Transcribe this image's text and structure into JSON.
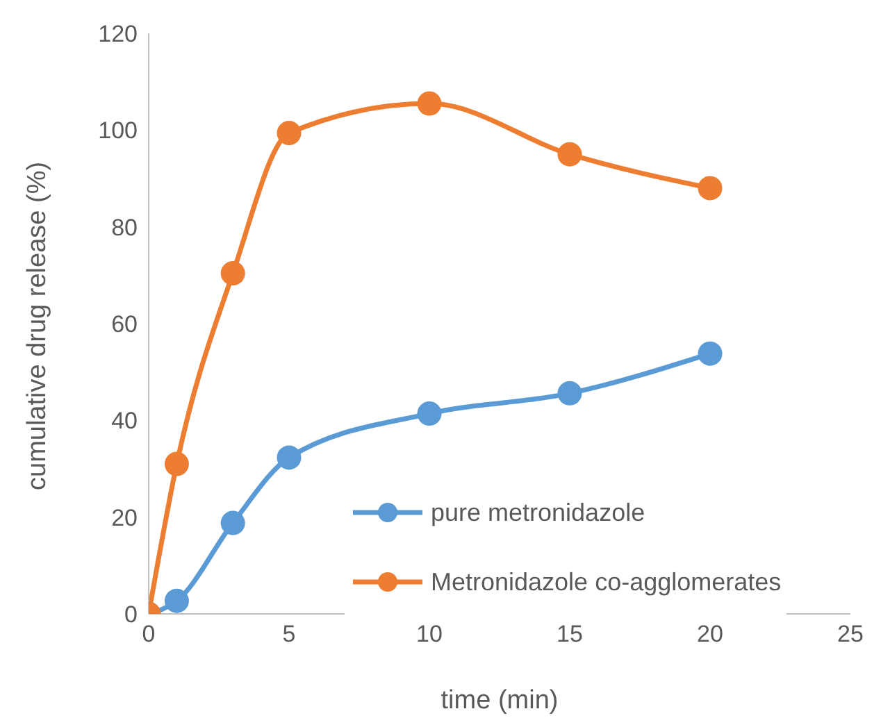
{
  "chart_data": {
    "type": "line",
    "xlabel": "time (min)",
    "ylabel": "cumulative drug release (%)",
    "x": [
      0,
      1,
      3,
      5,
      10,
      15,
      20
    ],
    "series": [
      {
        "name": "pure metronidazole",
        "color": "#5b9bd5",
        "values": [
          0,
          2.7,
          18.8,
          32.3,
          41.4,
          45.6,
          53.8
        ]
      },
      {
        "name": "Metronidazole co-agglomerates",
        "color": "#ed7d31",
        "values": [
          0,
          31,
          70.4,
          99.4,
          105.5,
          95,
          88
        ]
      }
    ],
    "xlim": [
      0,
      25
    ],
    "xticks": [
      0,
      5,
      10,
      15,
      20,
      25
    ],
    "ylim": [
      0,
      120
    ],
    "yticks": [
      0,
      20,
      40,
      60,
      80,
      100,
      120
    ],
    "grid": false,
    "legend": "bottom right",
    "marker": "circle",
    "line_style": "solid"
  }
}
